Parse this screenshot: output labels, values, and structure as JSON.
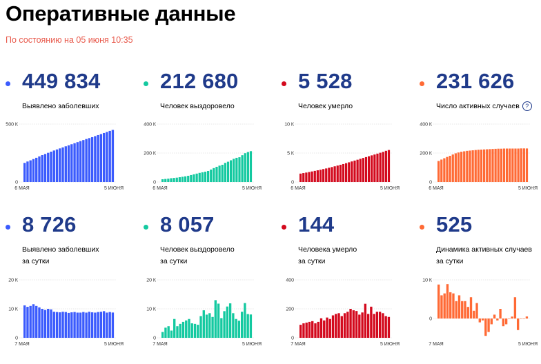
{
  "title": "Оперативные данные",
  "subtitle": "По состоянию на 05 июня 10:35",
  "help_icon_text": "?",
  "cards": [
    {
      "value": "449 834",
      "label1": "Выявлено заболевших",
      "label2": "",
      "color": "#3b5bfd",
      "help": false
    },
    {
      "value": "212 680",
      "label1": "Человек выздоровело",
      "label2": "",
      "color": "#14c9a0",
      "help": false
    },
    {
      "value": "5 528",
      "label1": "Человек умерло",
      "label2": "",
      "color": "#d3091d",
      "help": false
    },
    {
      "value": "231 626",
      "label1": "Число активных случаев",
      "label2": "",
      "color": "#ff6a35",
      "help": true
    },
    {
      "value": "8 726",
      "label1": "Выявлено заболевших",
      "label2": "за сутки",
      "color": "#3b5bfd",
      "help": false
    },
    {
      "value": "8 057",
      "label1": "Человек выздоровело",
      "label2": "за сутки",
      "color": "#14c9a0",
      "help": false
    },
    {
      "value": "144",
      "label1": "Человека умерло",
      "label2": "за сутки",
      "color": "#d3091d",
      "help": false
    },
    {
      "value": "525",
      "label1": "Динамика активных случаев",
      "label2": "за сутки",
      "color": "#ff6a35",
      "help": false
    }
  ],
  "chart_data": [
    {
      "type": "bar",
      "color": "#3b5bfd",
      "ylim": [
        0,
        500000
      ],
      "yticks": [
        0,
        500000
      ],
      "ytick_labels": [
        "0",
        "500 К"
      ],
      "xtick_labels": [
        "6 МАЯ",
        "5 ИЮНЯ"
      ],
      "values": [
        165000,
        177000,
        187000,
        198000,
        209000,
        221000,
        232000,
        242000,
        252000,
        262000,
        272000,
        281000,
        290000,
        299000,
        308000,
        317000,
        326000,
        335000,
        344000,
        353000,
        362000,
        371000,
        379000,
        387000,
        396000,
        405000,
        414000,
        423000,
        432000,
        441000,
        450000
      ]
    },
    {
      "type": "bar",
      "color": "#14c9a0",
      "ylim": [
        0,
        400000
      ],
      "yticks": [
        0,
        200000,
        400000
      ],
      "ytick_labels": [
        "0",
        "200 К",
        "400 К"
      ],
      "xtick_labels": [
        "6 МАЯ",
        "5 ИЮНЯ"
      ],
      "values": [
        19000,
        21000,
        23000,
        26000,
        28000,
        30000,
        33000,
        36000,
        39000,
        43000,
        48000,
        53000,
        58000,
        63000,
        67000,
        71000,
        76000,
        86000,
        96000,
        105000,
        113000,
        119000,
        132000,
        140000,
        150000,
        160000,
        167000,
        171000,
        185000,
        199000,
        207000,
        213000
      ]
    },
    {
      "type": "bar",
      "color": "#d3091d",
      "ylim": [
        0,
        10000
      ],
      "yticks": [
        0,
        5000,
        10000
      ],
      "ytick_labels": [
        "0",
        "5 К",
        "10 К"
      ],
      "xtick_labels": [
        "6 МАЯ",
        "5 ИЮНЯ"
      ],
      "values": [
        1450,
        1540,
        1630,
        1720,
        1820,
        1920,
        2020,
        2120,
        2230,
        2340,
        2460,
        2580,
        2710,
        2840,
        2970,
        3100,
        3250,
        3400,
        3550,
        3700,
        3850,
        4000,
        4150,
        4300,
        4450,
        4600,
        4750,
        4900,
        5050,
        5200,
        5380,
        5528
      ]
    },
    {
      "type": "bar",
      "color": "#ff6a35",
      "ylim": [
        0,
        400000
      ],
      "yticks": [
        0,
        200000,
        400000
      ],
      "ytick_labels": [
        "0",
        "200 К",
        "400 К"
      ],
      "xtick_labels": [
        "6 МАЯ",
        "5 ИЮНЯ"
      ],
      "values": [
        145000,
        155000,
        164000,
        173000,
        181000,
        190000,
        198000,
        204000,
        209000,
        212000,
        215000,
        217000,
        219000,
        221000,
        223000,
        224000,
        225000,
        226000,
        227000,
        228000,
        229000,
        230000,
        230000,
        231000,
        231000,
        231000,
        231000,
        231000,
        231000,
        232000,
        232000,
        231626
      ]
    },
    {
      "type": "bar",
      "color": "#3b5bfd",
      "ylim": [
        0,
        20000
      ],
      "yticks": [
        0,
        10000,
        20000
      ],
      "ytick_labels": [
        "0",
        "10 К",
        "20 К"
      ],
      "xtick_labels": [
        "7 МАЯ",
        "5 ИЮНЯ"
      ],
      "values": [
        11200,
        10700,
        11000,
        11600,
        11000,
        10500,
        10000,
        9600,
        10000,
        9800,
        9000,
        8900,
        8800,
        9000,
        8900,
        8600,
        8800,
        8900,
        8700,
        8700,
        8900,
        8700,
        9000,
        8800,
        8700,
        8900,
        9000,
        9200,
        8700,
        8900,
        8726
      ]
    },
    {
      "type": "bar",
      "color": "#14c9a0",
      "ylim": [
        0,
        20000
      ],
      "yticks": [
        0,
        10000,
        20000
      ],
      "ytick_labels": [
        "0",
        "10 К",
        "20 К"
      ],
      "xtick_labels": [
        "7 МАЯ",
        "5 ИЮНЯ"
      ],
      "values": [
        2000,
        3500,
        4000,
        2500,
        6500,
        4000,
        4800,
        5500,
        6000,
        6500,
        5000,
        4800,
        4500,
        7500,
        9500,
        8000,
        8500,
        7200,
        13000,
        11800,
        6800,
        9200,
        10800,
        11900,
        8500,
        6500,
        5900,
        9000,
        12000,
        8200,
        8057
      ]
    },
    {
      "type": "bar",
      "color": "#d3091d",
      "ylim": [
        0,
        400
      ],
      "yticks": [
        0,
        200,
        400
      ],
      "ytick_labels": [
        "0",
        "200",
        "400"
      ],
      "xtick_labels": [
        "7 МАЯ",
        "5 ИЮНЯ"
      ],
      "values": [
        90,
        100,
        105,
        110,
        115,
        100,
        110,
        135,
        120,
        140,
        130,
        155,
        165,
        170,
        150,
        170,
        180,
        200,
        190,
        185,
        160,
        175,
        235,
        165,
        215,
        165,
        180,
        180,
        170,
        150,
        144
      ]
    },
    {
      "type": "bar",
      "color": "#ff6a35",
      "ylim": [
        -5000,
        10000
      ],
      "yticks": [
        0,
        10000
      ],
      "ytick_labels": [
        "0",
        "10 К"
      ],
      "xtick_labels": [
        "7 МАЯ",
        "5 ИЮНЯ"
      ],
      "values": [
        8800,
        6000,
        6500,
        8900,
        6800,
        6500,
        4500,
        6000,
        4500,
        4500,
        3000,
        5500,
        2000,
        4000,
        -1000,
        -500,
        -4500,
        -3500,
        -1500,
        1000,
        -500,
        2500,
        -2000,
        -1500,
        0,
        500,
        5500,
        -3000,
        0,
        0,
        525
      ]
    }
  ]
}
